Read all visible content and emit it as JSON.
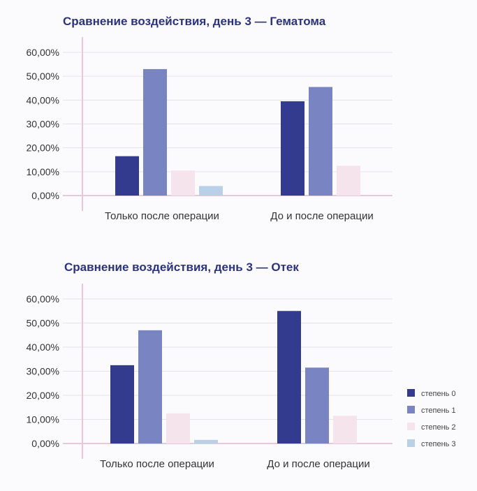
{
  "colors": {
    "grid": "#e4e2ec",
    "axis": "#e8c7d6",
    "title": "#2b3280",
    "text": "#333333"
  },
  "chart_data": [
    {
      "type": "bar",
      "title": "Сравнение воздействия, день 3 — Гематома",
      "categories": [
        "Только после операции",
        "До и после операции"
      ],
      "ylim": [
        0,
        60
      ],
      "yticks": [
        "0,00%",
        "10,00%",
        "20,00%",
        "30,00%",
        "40,00%",
        "50,00%",
        "60,00%"
      ],
      "grid": true,
      "series": [
        {
          "name": "степень 0",
          "color": "#323b8d",
          "values": [
            16.5,
            39.5
          ]
        },
        {
          "name": "степень 1",
          "color": "#7885c2",
          "values": [
            53,
            45.5
          ]
        },
        {
          "name": "степень 2",
          "color": "#f5e4ec",
          "values": [
            10.5,
            12.5
          ]
        },
        {
          "name": "степень 3",
          "color": "#b9d1e6",
          "values": [
            4,
            0
          ]
        }
      ]
    },
    {
      "type": "bar",
      "title": "Сравнение воздействия, день 3 — Отек",
      "categories": [
        "Только после операции",
        "До и после операции"
      ],
      "ylim": [
        0,
        60
      ],
      "yticks": [
        "0,00%",
        "10,00%",
        "20,00%",
        "30,00%",
        "40,00%",
        "50,00%",
        "60,00%"
      ],
      "grid": true,
      "legend": "right",
      "series": [
        {
          "name": "степень 0",
          "color": "#323b8d",
          "values": [
            32.5,
            55
          ]
        },
        {
          "name": "степень 1",
          "color": "#7885c2",
          "values": [
            47,
            31.5
          ]
        },
        {
          "name": "степень 2",
          "color": "#f5e4ec",
          "values": [
            12.5,
            11.5
          ]
        },
        {
          "name": "степень 3",
          "color": "#b9d1e6",
          "values": [
            1.5,
            0
          ]
        }
      ]
    }
  ]
}
